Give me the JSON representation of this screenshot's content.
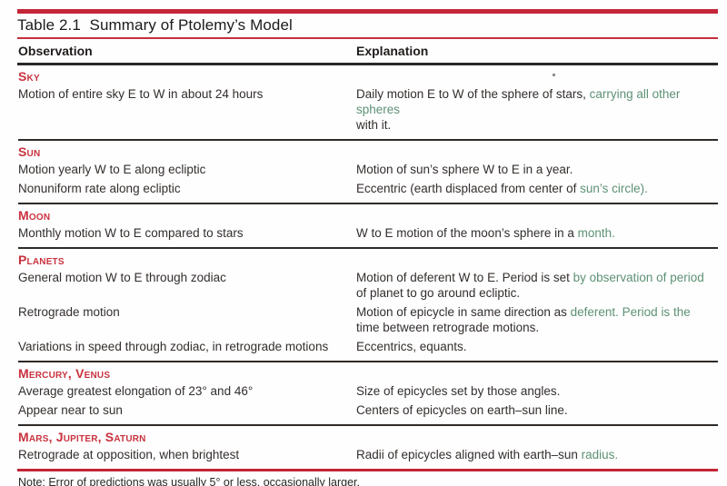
{
  "page": {
    "title": "Table 2.1  Summary of Ptolemy’s Model",
    "note": "Note: Error of predictions was usually 5° or less, occasionally larger."
  },
  "columns": {
    "observation": "Observation",
    "explanation": "Explanation"
  },
  "colors": {
    "accent_red": "#c32638",
    "section_label_red": "#c9323f",
    "body_text": "#332e2c",
    "tinted_green_text": "#5d9175",
    "rule_black": "#2e2a28"
  },
  "sections": [
    {
      "label": "Sky",
      "rows": [
        {
          "observation": "Motion of entire sky E to W in about 24 hours",
          "explanation": [
            [
              {
                "t": "Daily motion E to W of the sphere of stars, ",
                "c": "k"
              },
              {
                "t": "carrying all other spheres",
                "c": "g"
              }
            ],
            [
              {
                "t": "with it.",
                "c": "k"
              }
            ]
          ]
        }
      ]
    },
    {
      "label": "Sun",
      "rows": [
        {
          "observation": "Motion yearly W to E along ecliptic",
          "explanation": [
            [
              {
                "t": "Motion of sun’s sphere W to E in a year.",
                "c": "k"
              }
            ]
          ]
        },
        {
          "observation": "Nonuniform rate along ecliptic",
          "explanation": [
            [
              {
                "t": "Eccentric (earth displaced from center of ",
                "c": "k"
              },
              {
                "t": "sun’s circle).",
                "c": "g"
              }
            ]
          ]
        }
      ]
    },
    {
      "label": "Moon",
      "rows": [
        {
          "observation": "Monthly motion W to E compared to stars",
          "explanation": [
            [
              {
                "t": "W to E motion of the moon’s sphere in a ",
                "c": "k"
              },
              {
                "t": "month.",
                "c": "g"
              }
            ]
          ]
        }
      ]
    },
    {
      "label": "Planets",
      "rows": [
        {
          "observation": "General motion W to E through zodiac",
          "explanation": [
            [
              {
                "t": "Motion of deferent W to E. Period is set ",
                "c": "k"
              },
              {
                "t": "by observation of period",
                "c": "g"
              }
            ],
            [
              {
                "t": "of planet to go around ecliptic.",
                "c": "k"
              }
            ]
          ]
        },
        {
          "observation": "Retrograde motion",
          "explanation": [
            [
              {
                "t": "Motion of epicycle in same direction as ",
                "c": "k"
              },
              {
                "t": "deferent. Period is the",
                "c": "g"
              }
            ],
            [
              {
                "t": "time between retrograde motions.",
                "c": "k"
              }
            ]
          ]
        },
        {
          "observation": "Variations in speed through zodiac, in retrograde motions",
          "explanation": [
            [
              {
                "t": "Eccentrics, equants.",
                "c": "k"
              }
            ]
          ]
        }
      ]
    },
    {
      "label": "Mercury, Venus",
      "rows": [
        {
          "observation": "Average greatest elongation of 23° and 46°",
          "explanation": [
            [
              {
                "t": "Size of epicycles set by those angles.",
                "c": "k"
              }
            ]
          ]
        },
        {
          "observation": "Appear near to sun",
          "explanation": [
            [
              {
                "t": "Centers of epicycles on earth–sun line.",
                "c": "k"
              }
            ]
          ]
        }
      ]
    },
    {
      "label": "Mars, Jupiter, Saturn",
      "rows": [
        {
          "observation": "Retrograde at opposition, when brightest",
          "explanation": [
            [
              {
                "t": "Radii of epicycles aligned with earth–sun ",
                "c": "k"
              },
              {
                "t": "radius.",
                "c": "g"
              }
            ]
          ]
        }
      ]
    }
  ]
}
